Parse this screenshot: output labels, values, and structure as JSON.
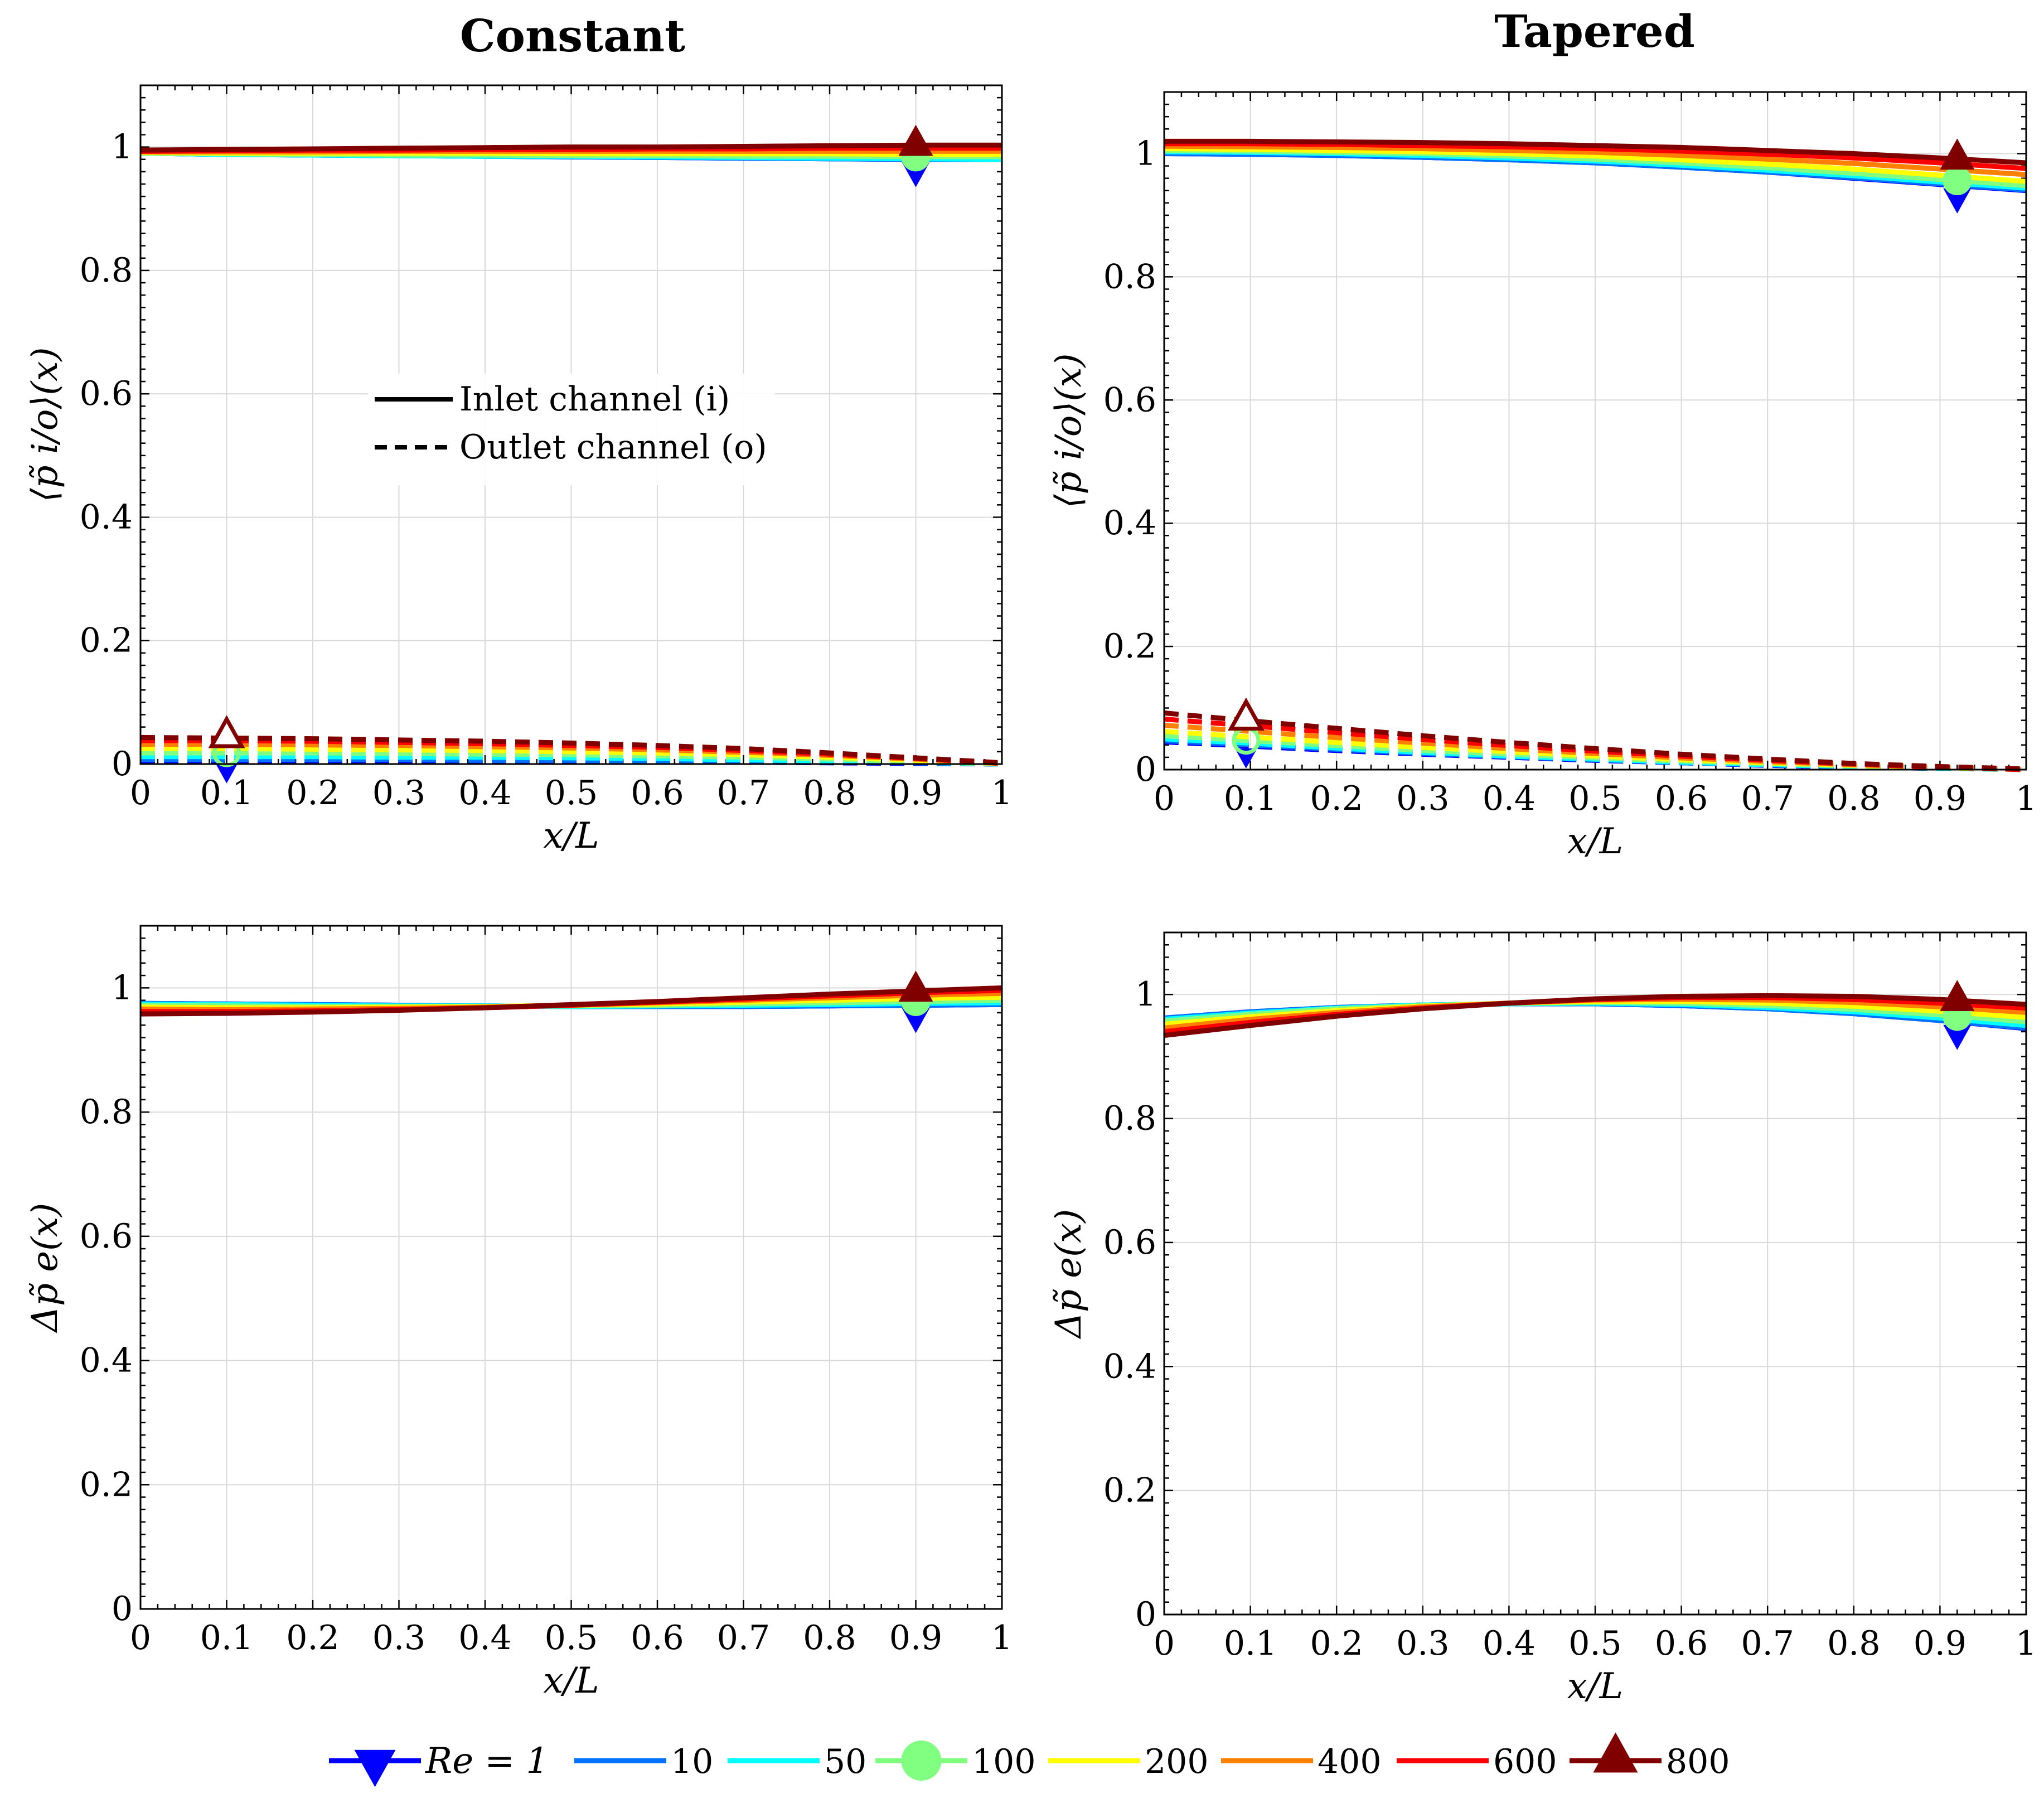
{
  "figure": {
    "col_titles": [
      "Constant",
      "Tapered"
    ],
    "colors": {
      "re1": "#0000ff",
      "re10": "#0072ff",
      "re50": "#00ffff",
      "re100": "#80ff80",
      "re200": "#ffff00",
      "re400": "#ff8000",
      "re600": "#ff0000",
      "re800": "#800000",
      "grid": "#d9d9d9"
    },
    "inner_legend": [
      {
        "label": "Inlet channel (i)",
        "style": "solid"
      },
      {
        "label": "Outlet channel (o)",
        "style": "dashed"
      }
    ],
    "bottom_legend": [
      {
        "label": "Re = 1",
        "color_key": "re1",
        "marker": "triangle-down"
      },
      {
        "label": "10",
        "color_key": "re10",
        "marker": "none"
      },
      {
        "label": "50",
        "color_key": "re50",
        "marker": "none"
      },
      {
        "label": "100",
        "color_key": "re100",
        "marker": "circle"
      },
      {
        "label": "200",
        "color_key": "re200",
        "marker": "none"
      },
      {
        "label": "400",
        "color_key": "re400",
        "marker": "none"
      },
      {
        "label": "600",
        "color_key": "re600",
        "marker": "none"
      },
      {
        "label": "800",
        "color_key": "re800",
        "marker": "triangle-up"
      }
    ]
  },
  "chart_data": [
    {
      "id": "constant-pressure",
      "type": "line",
      "title": "Constant",
      "xlabel": "x/L",
      "ylabel": "⟨p̃ i/o⟩(x)",
      "xlim": [
        0,
        1
      ],
      "ylim": [
        0,
        1.1
      ],
      "xticks": [
        "0",
        "0.1",
        "0.2",
        "0.3",
        "0.4",
        "0.5",
        "0.6",
        "0.7",
        "0.8",
        "0.9",
        "1"
      ],
      "yticks": [
        "0",
        "0.2",
        "0.4",
        "0.6",
        "0.8",
        "1"
      ],
      "x": [
        0,
        0.1,
        0.2,
        0.3,
        0.4,
        0.5,
        0.6,
        0.7,
        0.8,
        0.9,
        1.0
      ],
      "markers": {
        "inlet_x": 0.9,
        "outlet_x": 0.1
      },
      "series": [
        {
          "name": "Re = 1",
          "inlet": [
            0.99,
            0.988,
            0.987,
            0.986,
            0.985,
            0.984,
            0.983,
            0.982,
            0.981,
            0.98,
            0.98
          ],
          "outlet": [
            0.005,
            0.005,
            0.005,
            0.005,
            0.004,
            0.004,
            0.003,
            0.003,
            0.002,
            0.001,
            0.0
          ]
        },
        {
          "name": "10",
          "inlet": [
            0.99,
            0.988,
            0.987,
            0.986,
            0.985,
            0.984,
            0.983,
            0.982,
            0.981,
            0.98,
            0.98
          ],
          "outlet": [
            0.007,
            0.007,
            0.007,
            0.007,
            0.006,
            0.006,
            0.005,
            0.004,
            0.003,
            0.002,
            0.0
          ]
        },
        {
          "name": "50",
          "inlet": [
            0.99,
            0.988,
            0.987,
            0.986,
            0.985,
            0.985,
            0.984,
            0.983,
            0.982,
            0.981,
            0.98
          ],
          "outlet": [
            0.012,
            0.012,
            0.012,
            0.011,
            0.011,
            0.01,
            0.009,
            0.007,
            0.005,
            0.003,
            0.0
          ]
        },
        {
          "name": "100",
          "inlet": [
            0.99,
            0.989,
            0.988,
            0.987,
            0.987,
            0.986,
            0.986,
            0.985,
            0.985,
            0.984,
            0.984
          ],
          "outlet": [
            0.018,
            0.018,
            0.018,
            0.017,
            0.016,
            0.015,
            0.013,
            0.011,
            0.008,
            0.004,
            0.0
          ]
        },
        {
          "name": "200",
          "inlet": [
            0.991,
            0.99,
            0.99,
            0.99,
            0.99,
            0.989,
            0.989,
            0.989,
            0.989,
            0.988,
            0.988
          ],
          "outlet": [
            0.025,
            0.025,
            0.024,
            0.023,
            0.022,
            0.02,
            0.018,
            0.015,
            0.011,
            0.006,
            0.001
          ]
        },
        {
          "name": "400",
          "inlet": [
            0.992,
            0.992,
            0.992,
            0.993,
            0.993,
            0.993,
            0.993,
            0.993,
            0.993,
            0.993,
            0.993
          ],
          "outlet": [
            0.032,
            0.032,
            0.031,
            0.03,
            0.028,
            0.026,
            0.023,
            0.019,
            0.014,
            0.008,
            0.001
          ]
        },
        {
          "name": "600",
          "inlet": [
            0.993,
            0.994,
            0.995,
            0.995,
            0.996,
            0.996,
            0.997,
            0.997,
            0.998,
            0.998,
            0.998
          ],
          "outlet": [
            0.038,
            0.038,
            0.037,
            0.035,
            0.033,
            0.03,
            0.027,
            0.022,
            0.016,
            0.009,
            0.001
          ]
        },
        {
          "name": "800",
          "inlet": [
            0.995,
            0.996,
            0.997,
            0.998,
            0.999,
            1.0,
            1.0,
            1.001,
            1.002,
            1.003,
            1.003
          ],
          "outlet": [
            0.043,
            0.042,
            0.041,
            0.039,
            0.037,
            0.034,
            0.03,
            0.025,
            0.018,
            0.01,
            0.002
          ]
        }
      ]
    },
    {
      "id": "tapered-pressure",
      "type": "line",
      "title": "Tapered",
      "xlabel": "x/L",
      "ylabel": "⟨p̃ i/o⟩(x)",
      "xlim": [
        0,
        1
      ],
      "ylim": [
        0,
        1.1
      ],
      "xticks": [
        "0",
        "0.1",
        "0.2",
        "0.3",
        "0.4",
        "0.5",
        "0.6",
        "0.7",
        "0.8",
        "0.9",
        "1"
      ],
      "yticks": [
        "0",
        "0.2",
        "0.4",
        "0.6",
        "0.8",
        "1"
      ],
      "x": [
        0,
        0.1,
        0.2,
        0.3,
        0.4,
        0.5,
        0.6,
        0.7,
        0.8,
        0.9,
        1.0
      ],
      "markers": {
        "inlet_x": 0.92,
        "outlet_x": 0.095
      },
      "series": [
        {
          "name": "Re = 1",
          "inlet": [
            1.0,
            0.999,
            0.997,
            0.994,
            0.99,
            0.985,
            0.978,
            0.97,
            0.96,
            0.95,
            0.94
          ],
          "outlet": [
            0.045,
            0.038,
            0.031,
            0.025,
            0.02,
            0.015,
            0.011,
            0.007,
            0.004,
            0.002,
            0.0
          ]
        },
        {
          "name": "10",
          "inlet": [
            1.0,
            0.999,
            0.997,
            0.994,
            0.99,
            0.985,
            0.978,
            0.97,
            0.961,
            0.951,
            0.941
          ],
          "outlet": [
            0.047,
            0.04,
            0.033,
            0.026,
            0.021,
            0.016,
            0.011,
            0.008,
            0.005,
            0.002,
            0.0
          ]
        },
        {
          "name": "50",
          "inlet": [
            1.003,
            1.002,
            1.0,
            0.997,
            0.993,
            0.988,
            0.981,
            0.973,
            0.964,
            0.954,
            0.944
          ],
          "outlet": [
            0.05,
            0.043,
            0.035,
            0.028,
            0.022,
            0.017,
            0.012,
            0.008,
            0.005,
            0.002,
            0.0
          ]
        },
        {
          "name": "100",
          "inlet": [
            1.005,
            1.004,
            1.002,
            1.0,
            0.996,
            0.991,
            0.985,
            0.977,
            0.968,
            0.958,
            0.948
          ],
          "outlet": [
            0.055,
            0.047,
            0.039,
            0.031,
            0.025,
            0.019,
            0.014,
            0.01,
            0.006,
            0.003,
            0.0
          ]
        },
        {
          "name": "200",
          "inlet": [
            1.008,
            1.007,
            1.005,
            1.003,
            1.0,
            0.996,
            0.99,
            0.983,
            0.975,
            0.965,
            0.955
          ],
          "outlet": [
            0.062,
            0.053,
            0.044,
            0.036,
            0.029,
            0.022,
            0.016,
            0.011,
            0.007,
            0.003,
            0.0
          ]
        },
        {
          "name": "400",
          "inlet": [
            1.012,
            1.011,
            1.01,
            1.008,
            1.005,
            1.002,
            0.997,
            0.991,
            0.984,
            0.975,
            0.966
          ],
          "outlet": [
            0.072,
            0.062,
            0.052,
            0.043,
            0.034,
            0.026,
            0.019,
            0.013,
            0.008,
            0.004,
            0.0
          ]
        },
        {
          "name": "600",
          "inlet": [
            1.016,
            1.016,
            1.015,
            1.013,
            1.011,
            1.008,
            1.004,
            0.999,
            0.993,
            0.985,
            0.976
          ],
          "outlet": [
            0.082,
            0.071,
            0.06,
            0.049,
            0.039,
            0.03,
            0.022,
            0.015,
            0.009,
            0.004,
            0.0
          ]
        },
        {
          "name": "800",
          "inlet": [
            1.02,
            1.02,
            1.019,
            1.018,
            1.016,
            1.013,
            1.01,
            1.005,
            1.0,
            0.993,
            0.985
          ],
          "outlet": [
            0.092,
            0.079,
            0.067,
            0.055,
            0.044,
            0.034,
            0.025,
            0.017,
            0.01,
            0.005,
            0.001
          ]
        }
      ]
    },
    {
      "id": "constant-dp",
      "type": "line",
      "title": "",
      "xlabel": "x/L",
      "ylabel": "Δp̃ e(x)",
      "xlim": [
        0,
        1
      ],
      "ylim": [
        0,
        1.1
      ],
      "xticks": [
        "0",
        "0.1",
        "0.2",
        "0.3",
        "0.4",
        "0.5",
        "0.6",
        "0.7",
        "0.8",
        "0.9",
        "1"
      ],
      "yticks": [
        "0",
        "0.2",
        "0.4",
        "0.6",
        "0.8",
        "1"
      ],
      "x": [
        0,
        0.1,
        0.2,
        0.3,
        0.4,
        0.5,
        0.6,
        0.7,
        0.8,
        0.9,
        1.0
      ],
      "markers": {
        "inlet_x": 0.9
      },
      "series": [
        {
          "name": "Re = 1",
          "values": [
            0.975,
            0.974,
            0.973,
            0.972,
            0.971,
            0.97,
            0.97,
            0.97,
            0.971,
            0.972,
            0.973
          ]
        },
        {
          "name": "10",
          "values": [
            0.975,
            0.974,
            0.973,
            0.972,
            0.971,
            0.97,
            0.97,
            0.97,
            0.971,
            0.972,
            0.973
          ]
        },
        {
          "name": "50",
          "values": [
            0.974,
            0.973,
            0.972,
            0.971,
            0.971,
            0.97,
            0.971,
            0.972,
            0.973,
            0.975,
            0.976
          ]
        },
        {
          "name": "100",
          "values": [
            0.972,
            0.971,
            0.97,
            0.97,
            0.97,
            0.971,
            0.972,
            0.974,
            0.976,
            0.978,
            0.98
          ]
        },
        {
          "name": "200",
          "values": [
            0.969,
            0.968,
            0.968,
            0.969,
            0.97,
            0.972,
            0.974,
            0.977,
            0.98,
            0.983,
            0.985
          ]
        },
        {
          "name": "400",
          "values": [
            0.966,
            0.965,
            0.966,
            0.967,
            0.969,
            0.972,
            0.976,
            0.98,
            0.984,
            0.988,
            0.991
          ]
        },
        {
          "name": "600",
          "values": [
            0.962,
            0.962,
            0.963,
            0.965,
            0.968,
            0.972,
            0.977,
            0.982,
            0.987,
            0.992,
            0.996
          ]
        },
        {
          "name": "800",
          "values": [
            0.958,
            0.959,
            0.961,
            0.964,
            0.968,
            0.973,
            0.978,
            0.984,
            0.99,
            0.995,
            1.0
          ]
        }
      ]
    },
    {
      "id": "tapered-dp",
      "type": "line",
      "title": "",
      "xlabel": "x/L",
      "ylabel": "Δp̃ e(x)",
      "xlim": [
        0,
        1
      ],
      "ylim": [
        0,
        1.1
      ],
      "xticks": [
        "0",
        "0.1",
        "0.2",
        "0.3",
        "0.4",
        "0.5",
        "0.6",
        "0.7",
        "0.8",
        "0.9",
        "1"
      ],
      "yticks": [
        "0",
        "0.2",
        "0.4",
        "0.6",
        "0.8",
        "1"
      ],
      "x": [
        0,
        0.1,
        0.2,
        0.3,
        0.4,
        0.5,
        0.6,
        0.7,
        0.8,
        0.9,
        1.0
      ],
      "markers": {
        "inlet_x": 0.92
      },
      "series": [
        {
          "name": "Re = 1",
          "values": [
            0.962,
            0.972,
            0.979,
            0.983,
            0.985,
            0.985,
            0.982,
            0.977,
            0.969,
            0.958,
            0.945
          ]
        },
        {
          "name": "10",
          "values": [
            0.962,
            0.972,
            0.979,
            0.983,
            0.985,
            0.985,
            0.982,
            0.977,
            0.969,
            0.958,
            0.946
          ]
        },
        {
          "name": "50",
          "values": [
            0.96,
            0.97,
            0.978,
            0.983,
            0.985,
            0.986,
            0.984,
            0.979,
            0.972,
            0.962,
            0.95
          ]
        },
        {
          "name": "100",
          "values": [
            0.957,
            0.968,
            0.977,
            0.982,
            0.986,
            0.987,
            0.986,
            0.982,
            0.976,
            0.967,
            0.956
          ]
        },
        {
          "name": "200",
          "values": [
            0.952,
            0.964,
            0.974,
            0.981,
            0.986,
            0.989,
            0.989,
            0.986,
            0.981,
            0.973,
            0.963
          ]
        },
        {
          "name": "400",
          "values": [
            0.946,
            0.96,
            0.971,
            0.98,
            0.986,
            0.991,
            0.992,
            0.991,
            0.987,
            0.98,
            0.971
          ]
        },
        {
          "name": "600",
          "values": [
            0.94,
            0.955,
            0.968,
            0.978,
            0.986,
            0.992,
            0.995,
            0.995,
            0.992,
            0.986,
            0.978
          ]
        },
        {
          "name": "800",
          "values": [
            0.934,
            0.95,
            0.965,
            0.977,
            0.986,
            0.993,
            0.997,
            0.998,
            0.997,
            0.992,
            0.984
          ]
        }
      ]
    }
  ]
}
